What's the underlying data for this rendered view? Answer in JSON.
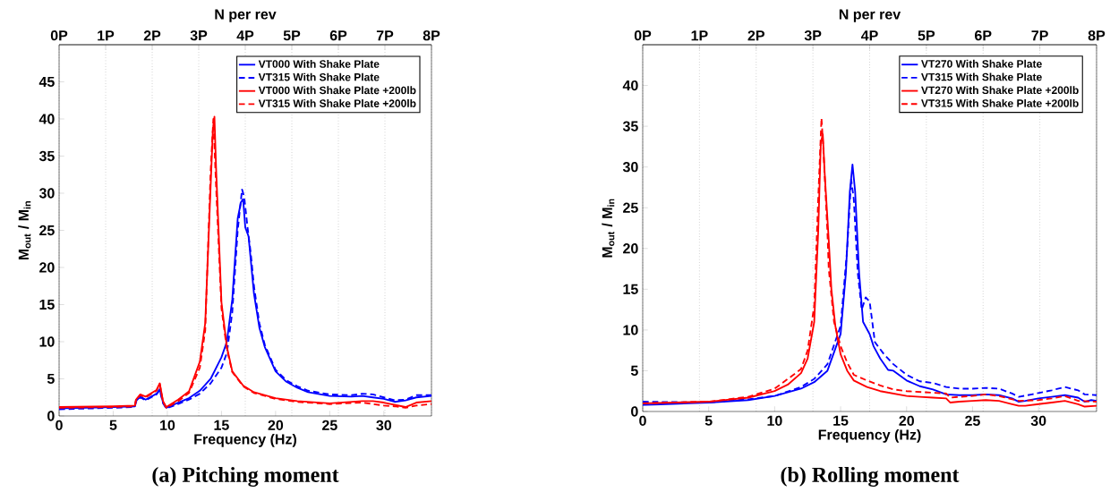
{
  "chart_data": [
    {
      "type": "line",
      "title": "(a) Pitching moment",
      "xlabel": "Frequency (Hz)",
      "ylabel": "M$_{out}$ / M$_{in}$",
      "x2label": "N per rev",
      "xlim": [
        0,
        34.4
      ],
      "xticks": [
        0,
        5,
        10,
        15,
        20,
        25,
        30
      ],
      "ylim": [
        0,
        50
      ],
      "yticks": [
        0,
        5,
        10,
        15,
        20,
        25,
        30,
        35,
        40,
        45
      ],
      "x2lim": [
        0,
        8
      ],
      "x2ticks": [
        {
          "value": 0,
          "label": "0P"
        },
        {
          "value": 1,
          "label": "1P"
        },
        {
          "value": 2,
          "label": "2P"
        },
        {
          "value": 3,
          "label": "3P"
        },
        {
          "value": 4,
          "label": "4P"
        },
        {
          "value": 5,
          "label": "5P"
        },
        {
          "value": 6,
          "label": "6P"
        },
        {
          "value": 7,
          "label": "7P"
        },
        {
          "value": 8,
          "label": "8P"
        }
      ],
      "grid": "x2",
      "legend": "top right",
      "series": [
        {
          "name": "VT000 With Shake Plate",
          "color": "#0000ff",
          "line_style": "solid",
          "x": [
            0,
            5,
            7,
            7.1,
            7.5,
            8,
            9,
            9.3,
            9.6,
            9.9,
            11,
            12,
            13,
            14,
            15,
            15.5,
            16,
            16.5,
            16.8,
            17.0,
            17.2,
            17.5,
            18,
            18.5,
            19,
            20,
            21,
            22,
            23,
            25,
            27,
            28,
            29,
            30,
            31,
            32,
            33,
            34.4
          ],
          "values": [
            1.0,
            1.2,
            1.3,
            2.0,
            2.6,
            2.2,
            3.0,
            3.6,
            1.8,
            1.1,
            1.8,
            2.4,
            3.4,
            5.0,
            7.9,
            10,
            15.7,
            26.6,
            28.8,
            29.2,
            25.4,
            24.2,
            16.5,
            11.9,
            9.3,
            6.0,
            4.6,
            3.8,
            3.2,
            2.7,
            2.6,
            2.7,
            2.5,
            2.3,
            1.9,
            2.1,
            2.5,
            2.7
          ]
        },
        {
          "name": "VT315 With Shake Plate",
          "color": "#0000ff",
          "line_style": "dashed",
          "x": [
            0,
            5,
            7,
            7.1,
            7.5,
            8,
            9,
            9.3,
            9.6,
            9.9,
            11,
            12,
            13,
            14,
            15,
            15.5,
            16,
            16.5,
            16.9,
            17.1,
            17.4,
            17.7,
            18,
            18.5,
            19,
            20,
            21,
            22,
            23,
            25,
            27,
            28,
            29,
            30,
            31,
            32,
            33,
            34.4
          ],
          "values": [
            0.9,
            1.1,
            1.2,
            1.9,
            2.5,
            2.1,
            2.9,
            3.5,
            1.7,
            1.0,
            1.6,
            2.2,
            3.0,
            4.4,
            6.5,
            8.5,
            14.0,
            25.0,
            30.5,
            29.5,
            25.5,
            22.0,
            17.5,
            12.5,
            9.6,
            6.2,
            4.8,
            4.0,
            3.4,
            2.9,
            2.8,
            3.0,
            2.9,
            2.5,
            2.1,
            2.2,
            2.8,
            2.8
          ]
        },
        {
          "name": "VT000 With Shake Plate +200lb",
          "color": "#ff0000",
          "line_style": "solid",
          "x": [
            0,
            5,
            7,
            7.1,
            7.5,
            8,
            9,
            9.3,
            9.6,
            9.9,
            11,
            12,
            13,
            13.5,
            14,
            14.2,
            14.35,
            14.5,
            15,
            15.5,
            16,
            17,
            18,
            20,
            22,
            25,
            28,
            29,
            30,
            31,
            32,
            33,
            34.4
          ],
          "values": [
            1.2,
            1.3,
            1.4,
            2.2,
            2.9,
            2.6,
            3.5,
            4.4,
            2.0,
            1.2,
            2.2,
            3.3,
            7.3,
            12.5,
            31,
            38.3,
            40.3,
            33.5,
            15.3,
            9.3,
            6.0,
            4.1,
            3.2,
            2.4,
            2.0,
            1.7,
            2.0,
            2.0,
            1.8,
            1.5,
            1.2,
            1.8,
            2.0
          ]
        },
        {
          "name": "VT315 With Shake Plate +200lb",
          "color": "#ff0000",
          "line_style": "dashed",
          "x": [
            0,
            5,
            7,
            7.1,
            7.5,
            8,
            9,
            9.3,
            9.6,
            9.9,
            11,
            12,
            13,
            13.5,
            14,
            14.25,
            14.5,
            15,
            15.5,
            16,
            17,
            18,
            20,
            22,
            25,
            28,
            29,
            30,
            31,
            32,
            33,
            34.4
          ],
          "values": [
            1.1,
            1.2,
            1.3,
            2.1,
            2.8,
            2.5,
            3.4,
            4.3,
            1.9,
            1.1,
            2.0,
            3.1,
            6.5,
            11.5,
            33,
            40.0,
            31,
            14.5,
            9.0,
            5.9,
            4.0,
            3.1,
            2.3,
            1.9,
            1.6,
            1.8,
            1.6,
            1.4,
            1.3,
            1.1,
            1.4,
            1.6
          ]
        }
      ]
    },
    {
      "type": "line",
      "title": "(b) Rolling moment",
      "xlabel": "Frequency (Hz)",
      "ylabel": "M$_{out}$ / M$_{in}$",
      "x2label": "N per rev",
      "xlim": [
        0,
        34.4
      ],
      "xticks": [
        0,
        5,
        10,
        15,
        20,
        25,
        30
      ],
      "ylim": [
        0,
        45
      ],
      "yticks": [
        0,
        5,
        10,
        15,
        20,
        25,
        30,
        35,
        40
      ],
      "x2lim": [
        0,
        8
      ],
      "x2ticks": [
        {
          "value": 0,
          "label": "0P"
        },
        {
          "value": 1,
          "label": "1P"
        },
        {
          "value": 2,
          "label": "2P"
        },
        {
          "value": 3,
          "label": "3P"
        },
        {
          "value": 4,
          "label": "4P"
        },
        {
          "value": 5,
          "label": "5P"
        },
        {
          "value": 6,
          "label": "6P"
        },
        {
          "value": 7,
          "label": "7P"
        },
        {
          "value": 8,
          "label": "8P"
        }
      ],
      "grid": "x2",
      "legend": "top right",
      "series": [
        {
          "name": "VT270 With Shake Plate",
          "color": "#0000ff",
          "line_style": "solid",
          "x": [
            0,
            5,
            8,
            10,
            12,
            13,
            14,
            15,
            15.4,
            15.7,
            15.9,
            16.1,
            16.4,
            16.7,
            17.2,
            17.5,
            18,
            18.6,
            19,
            20,
            21,
            22,
            23,
            24,
            25,
            26,
            27,
            28,
            28.5,
            29,
            30,
            31,
            32,
            33,
            33.5,
            34,
            34.4
          ],
          "values": [
            0.8,
            1.1,
            1.4,
            1.9,
            2.8,
            3.6,
            5.0,
            9.5,
            17,
            27,
            30.3,
            27,
            17,
            11,
            9.5,
            8,
            6.5,
            5.1,
            5.0,
            3.8,
            3.1,
            2.7,
            2.1,
            2.0,
            2.0,
            2.1,
            2.0,
            1.6,
            1.2,
            1.3,
            1.6,
            1.8,
            2.0,
            1.7,
            1.2,
            1.4,
            1.3
          ]
        },
        {
          "name": "VT315 With Shake Plate",
          "color": "#0000ff",
          "line_style": "dashed",
          "x": [
            0,
            5,
            8,
            10,
            12,
            13,
            14,
            15,
            15.5,
            15.8,
            16,
            16.3,
            16.6,
            16.9,
            17.2,
            17.6,
            18.3,
            19,
            20,
            21,
            22,
            23,
            24,
            25,
            26,
            27,
            28,
            28.5,
            29.5,
            31,
            32,
            33,
            33.5,
            34.4
          ],
          "values": [
            1.2,
            1.1,
            1.5,
            1.9,
            3.0,
            4.0,
            5.8,
            10.5,
            20,
            28.5,
            26,
            17,
            12.5,
            14,
            13.5,
            8.5,
            7,
            5.8,
            4.5,
            3.7,
            3.5,
            3.0,
            2.8,
            2.8,
            2.9,
            2.8,
            2.2,
            1.8,
            2.1,
            2.6,
            3.0,
            2.6,
            2.1,
            2.0
          ]
        },
        {
          "name": "VT270 With Shake Plate +200lb",
          "color": "#ff0000",
          "line_style": "solid",
          "x": [
            0,
            5,
            8,
            10,
            11,
            12,
            12.5,
            13,
            13.3,
            13.5,
            13.65,
            13.8,
            14.1,
            14.3,
            14.6,
            15,
            15.5,
            16,
            17,
            18,
            19,
            20,
            21,
            22,
            23,
            23.3,
            24,
            25,
            26,
            27,
            28,
            28.5,
            29,
            30,
            31,
            32,
            33,
            33.5,
            34.4
          ],
          "values": [
            1.0,
            1.2,
            1.7,
            2.5,
            3.3,
            4.7,
            6.5,
            11,
            22,
            33,
            34,
            29,
            21,
            15,
            10.5,
            7,
            5.0,
            3.8,
            3.0,
            2.5,
            2.2,
            1.9,
            1.8,
            1.7,
            1.6,
            1.1,
            1.2,
            1.3,
            1.4,
            1.3,
            0.9,
            0.7,
            0.7,
            0.9,
            1.1,
            1.3,
            0.9,
            0.6,
            0.7
          ]
        },
        {
          "name": "VT315 With Shake Plate +200lb",
          "color": "#ff0000",
          "line_style": "dashed",
          "x": [
            0,
            5,
            8,
            10,
            12,
            12.5,
            13,
            13.3,
            13.55,
            13.7,
            14,
            14.1,
            14.5,
            15,
            15.5,
            16,
            17,
            18,
            19,
            20,
            22,
            23,
            23.3,
            24,
            25,
            26,
            27,
            28,
            28.5,
            30,
            31,
            32,
            33,
            34.4
          ],
          "values": [
            1.0,
            1.2,
            1.8,
            2.8,
            5.2,
            7.5,
            13,
            26,
            36,
            32,
            22,
            17.5,
            11,
            8,
            6.0,
            4.5,
            3.8,
            3.2,
            2.7,
            2.5,
            2.3,
            2.2,
            1.7,
            1.8,
            1.9,
            2.1,
            1.9,
            1.5,
            1.3,
            1.4,
            1.6,
            1.9,
            1.3,
            1.2
          ]
        }
      ]
    }
  ]
}
